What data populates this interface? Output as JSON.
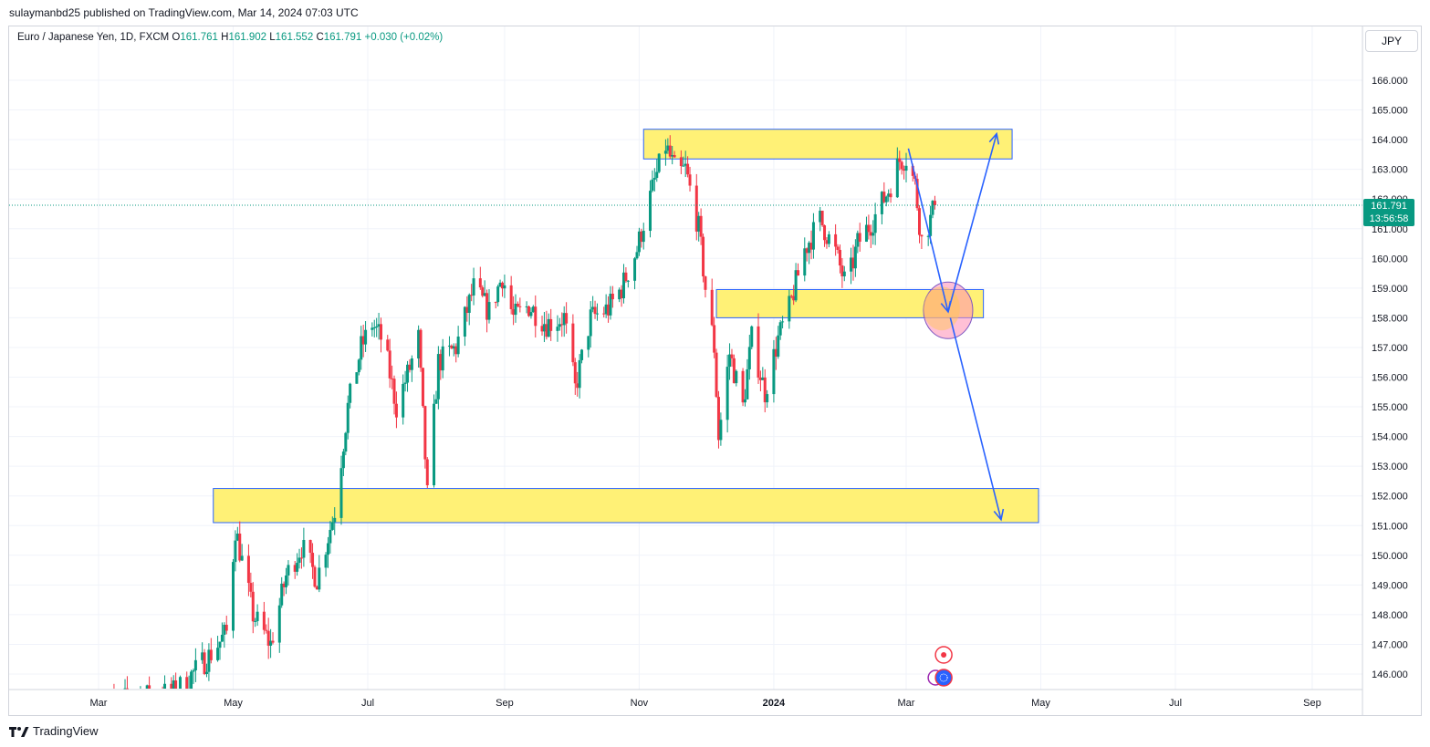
{
  "publisher_line": "sulaymanbd25 published on TradingView.com, Mar 14, 2024 07:03 UTC",
  "footer": {
    "brand": "TradingView",
    "logo_icon": "tradingview-logo-icon"
  },
  "currency_button": "JPY",
  "legend": {
    "symbol": "Euro / Japanese Yen, 1D, FXCM",
    "open_label": "O",
    "open": "161.761",
    "high_label": "H",
    "high": "161.902",
    "low_label": "L",
    "low": "161.552",
    "close_label": "C",
    "close": "161.791",
    "change": "+0.030 (+0.02%)"
  },
  "price_tag": {
    "price": "161.791",
    "countdown": "13:56:58"
  },
  "colors": {
    "up": "#089981",
    "down": "#f23645",
    "zone_fill": "#fff176",
    "zone_border": "#2962ff",
    "arrow": "#2962ff"
  },
  "chart_data": {
    "type": "candlestick",
    "symbol": "EURJPY",
    "interval": "1D",
    "ylim": [
      145.5,
      166.8
    ],
    "y_ticks": [
      "146.000",
      "147.000",
      "148.000",
      "149.000",
      "150.000",
      "151.000",
      "152.000",
      "153.000",
      "154.000",
      "155.000",
      "156.000",
      "157.000",
      "158.000",
      "159.000",
      "160.000",
      "161.000",
      "162.000",
      "163.000",
      "164.000",
      "165.000",
      "166.000"
    ],
    "x_ticks": [
      "Mar",
      "May",
      "Jul",
      "Sep",
      "Nov",
      "2024",
      "Mar",
      "May",
      "Jul",
      "Sep"
    ],
    "current_price": 161.791,
    "series_path": [
      {
        "date": "2023-03-01",
        "price": 145.0
      },
      {
        "date": "2023-04-05",
        "price": 145.4
      },
      {
        "date": "2023-04-20",
        "price": 146.6
      },
      {
        "date": "2023-04-28",
        "price": 147.4
      },
      {
        "date": "2023-05-02",
        "price": 150.9
      },
      {
        "date": "2023-05-10",
        "price": 148.0
      },
      {
        "date": "2023-05-18",
        "price": 147.0
      },
      {
        "date": "2023-05-25",
        "price": 149.3
      },
      {
        "date": "2023-06-01",
        "price": 150.3
      },
      {
        "date": "2023-06-08",
        "price": 149.2
      },
      {
        "date": "2023-06-16",
        "price": 151.5
      },
      {
        "date": "2023-06-22",
        "price": 155.0
      },
      {
        "date": "2023-06-28",
        "price": 157.0
      },
      {
        "date": "2023-07-03",
        "price": 157.8
      },
      {
        "date": "2023-07-08",
        "price": 157.2
      },
      {
        "date": "2023-07-14",
        "price": 155.0
      },
      {
        "date": "2023-07-20",
        "price": 156.3
      },
      {
        "date": "2023-07-24",
        "price": 157.3
      },
      {
        "date": "2023-07-28",
        "price": 152.0
      },
      {
        "date": "2023-08-02",
        "price": 156.5
      },
      {
        "date": "2023-08-10",
        "price": 157.0
      },
      {
        "date": "2023-08-18",
        "price": 159.0
      },
      {
        "date": "2023-08-25",
        "price": 158.2
      },
      {
        "date": "2023-08-31",
        "price": 159.4
      },
      {
        "date": "2023-09-05",
        "price": 158.0
      },
      {
        "date": "2023-09-12",
        "price": 158.4
      },
      {
        "date": "2023-09-20",
        "price": 157.8
      },
      {
        "date": "2023-09-28",
        "price": 158.0
      },
      {
        "date": "2023-10-03",
        "price": 155.6
      },
      {
        "date": "2023-10-10",
        "price": 158.0
      },
      {
        "date": "2023-10-18",
        "price": 158.3
      },
      {
        "date": "2023-10-24",
        "price": 159.0
      },
      {
        "date": "2023-10-31",
        "price": 160.3
      },
      {
        "date": "2023-11-04",
        "price": 161.5
      },
      {
        "date": "2023-11-08",
        "price": 162.6
      },
      {
        "date": "2023-11-13",
        "price": 163.8
      },
      {
        "date": "2023-11-18",
        "price": 162.8
      },
      {
        "date": "2023-11-22",
        "price": 163.0
      },
      {
        "date": "2023-11-28",
        "price": 161.0
      },
      {
        "date": "2023-12-01",
        "price": 159.0
      },
      {
        "date": "2023-12-05",
        "price": 157.0
      },
      {
        "date": "2023-12-07",
        "price": 154.0
      },
      {
        "date": "2023-12-12",
        "price": 156.8
      },
      {
        "date": "2023-12-18",
        "price": 155.0
      },
      {
        "date": "2023-12-22",
        "price": 157.3
      },
      {
        "date": "2023-12-28",
        "price": 155.5
      },
      {
        "date": "2024-01-03",
        "price": 157.3
      },
      {
        "date": "2024-01-08",
        "price": 158.3
      },
      {
        "date": "2024-01-15",
        "price": 160.3
      },
      {
        "date": "2024-01-22",
        "price": 161.3
      },
      {
        "date": "2024-01-29",
        "price": 160.2
      },
      {
        "date": "2024-02-03",
        "price": 159.0
      },
      {
        "date": "2024-02-08",
        "price": 160.5
      },
      {
        "date": "2024-02-15",
        "price": 161.3
      },
      {
        "date": "2024-02-22",
        "price": 162.3
      },
      {
        "date": "2024-02-27",
        "price": 163.3
      },
      {
        "date": "2024-03-01",
        "price": 163.4
      },
      {
        "date": "2024-03-05",
        "price": 162.5
      },
      {
        "date": "2024-03-08",
        "price": 160.6
      },
      {
        "date": "2024-03-12",
        "price": 161.3
      },
      {
        "date": "2024-03-14",
        "price": 161.791
      }
    ],
    "zones": [
      {
        "name": "resistance-zone",
        "x_start": "2023-11-03",
        "x_end": "2024-04-18",
        "y_top": 164.35,
        "y_bottom": 163.35
      },
      {
        "name": "mid-zone",
        "x_start": "2023-12-06",
        "x_end": "2024-04-05",
        "y_top": 158.95,
        "y_bottom": 158.0
      },
      {
        "name": "support-zone",
        "x_start": "2023-04-22",
        "x_end": "2024-04-30",
        "y_top": 152.25,
        "y_bottom": 151.1
      }
    ],
    "arrows": [
      {
        "from": {
          "date": "2024-03-02",
          "price": 163.7
        },
        "to": {
          "date": "2024-03-20",
          "price": 158.2
        }
      },
      {
        "from": {
          "date": "2024-03-20",
          "price": 158.2
        },
        "to": {
          "date": "2024-04-11",
          "price": 164.2
        }
      },
      {
        "from": {
          "date": "2024-03-21",
          "price": 158.0
        },
        "to": {
          "date": "2024-04-13",
          "price": 151.2
        }
      }
    ],
    "highlight_circle": {
      "date": "2024-03-20",
      "price": 158.25
    }
  }
}
